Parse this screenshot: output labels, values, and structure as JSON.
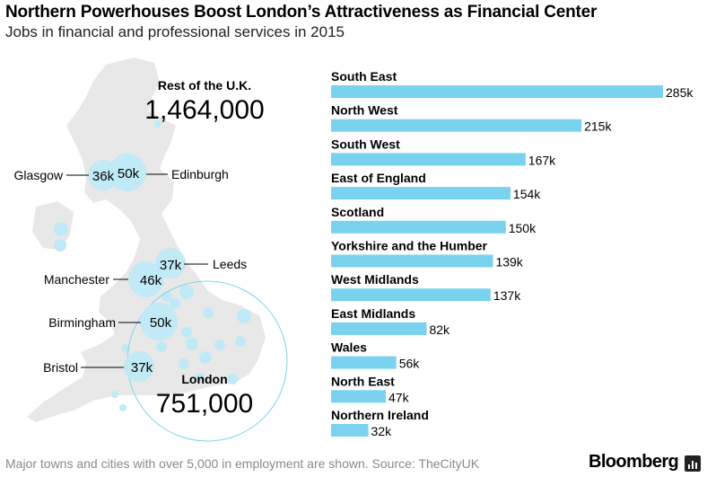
{
  "title": "Northern Powerhouses Boost London’s Attractiveness as Financial Center",
  "subtitle": "Jobs in financial and professional services in 2015",
  "footer": {
    "note": "Major towns and cities with over 5,000 in employment are shown. Source: TheCityUK",
    "brand": "Bloomberg"
  },
  "colors": {
    "bar": "#79d3ef",
    "bubble": "#bfe9f7",
    "map": "#e8e8e8",
    "ring": "#7fd2ec",
    "text": "#000000"
  },
  "map": {
    "rest_label": "Rest of the U.K.",
    "rest_value": "1,464,000",
    "london_label": "London",
    "london_value": "751,000",
    "cities": [
      {
        "name": "Glasgow",
        "value": "36k"
      },
      {
        "name": "Edinburgh",
        "value": "50k"
      },
      {
        "name": "Leeds",
        "value": "37k"
      },
      {
        "name": "Manchester",
        "value": "46k"
      },
      {
        "name": "Birmingham",
        "value": "50k"
      },
      {
        "name": "Bristol",
        "value": "37k"
      }
    ]
  },
  "chart_data": {
    "type": "bar",
    "orientation": "horizontal",
    "title": "Northern Powerhouses Boost London’s Attractiveness as Financial Center",
    "subtitle": "Jobs in financial and professional services in 2015",
    "categories": [
      "South East",
      "North West",
      "South West",
      "East of England",
      "Scotland",
      "Yorkshire and the Humber",
      "West Midlands",
      "East Midlands",
      "Wales",
      "North East",
      "Northern Ireland"
    ],
    "values": [
      285000,
      215000,
      167000,
      154000,
      150000,
      139000,
      137000,
      82000,
      56000,
      47000,
      32000
    ],
    "value_labels": [
      "285k",
      "215k",
      "167k",
      "154k",
      "150k",
      "139k",
      "137k",
      "82k",
      "56k",
      "47k",
      "32k"
    ],
    "xlim": [
      0,
      285000
    ],
    "grid": false,
    "legend": "none"
  }
}
